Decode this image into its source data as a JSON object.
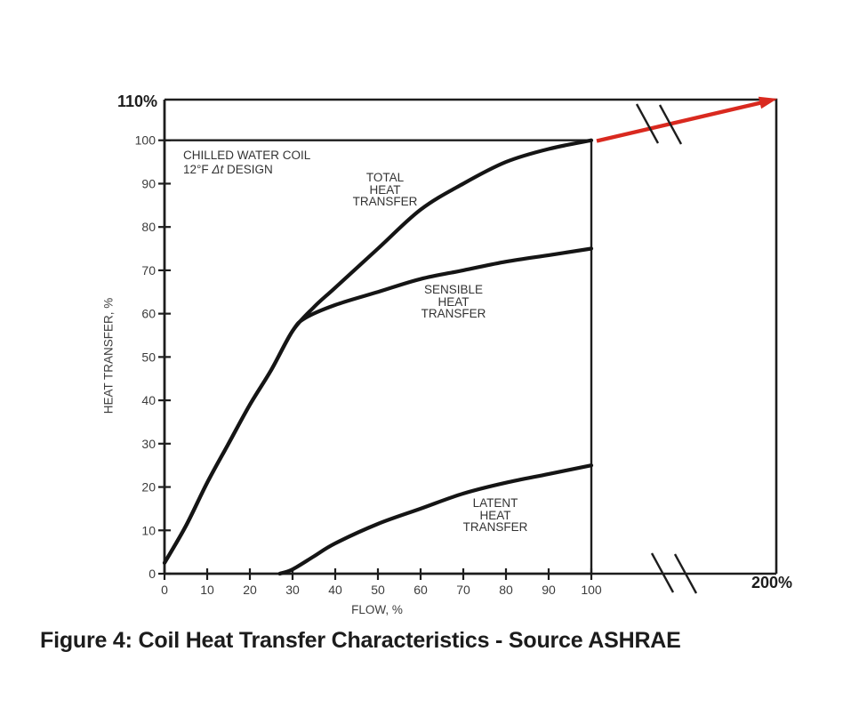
{
  "figure": {
    "caption_bold": "Figure 4:",
    "caption_rest": " Coil Heat Transfer Characteristics - Source ASHRAE"
  },
  "colors": {
    "ink": "#1d1d1d",
    "curve": "#151515",
    "tick_text": "#3c3c3c",
    "arrow_red": "#d9291f",
    "background": "#ffffff"
  },
  "chart_data": {
    "type": "line",
    "title": "",
    "xlabel": "FLOW, %",
    "ylabel": "HEAT TRANSFER, %",
    "xlim": [
      0,
      100
    ],
    "ylim": [
      0,
      110
    ],
    "x_ticks": [
      0,
      10,
      20,
      30,
      40,
      50,
      60,
      70,
      80,
      90,
      100
    ],
    "y_ticks": [
      0,
      10,
      20,
      30,
      40,
      50,
      60,
      70,
      80,
      90,
      100
    ],
    "grid": false,
    "legend_position": "inline-labels",
    "axis_top_label": "110%",
    "axis_extension_label": "200%",
    "axis_extension_note": "x-axis continues past 100 with break marks to 200% flow; red arrow extends the total heat transfer curve to 110% at 200% flow",
    "annotations": {
      "coil_note_line1": "CHILLED WATER COIL",
      "coil_note_prefix": "12°F ",
      "coil_note_italic": "Δt",
      "coil_note_suffix": " DESIGN",
      "total_label": "TOTAL\nHEAT\nTRANSFER",
      "sensible_label": "SENSIBLE\nHEAT\nTRANSFER",
      "latent_label": "LATENT\nHEAT\nTRANSFER"
    },
    "series": [
      {
        "name": "Total Heat Transfer",
        "points": [
          [
            0,
            2.5
          ],
          [
            5,
            11
          ],
          [
            10,
            21
          ],
          [
            15,
            30
          ],
          [
            20,
            39
          ],
          [
            25,
            47
          ],
          [
            30,
            56
          ],
          [
            35,
            61.5
          ],
          [
            40,
            66
          ],
          [
            50,
            75
          ],
          [
            60,
            84
          ],
          [
            70,
            90
          ],
          [
            80,
            95
          ],
          [
            90,
            98
          ],
          [
            100,
            100
          ]
        ]
      },
      {
        "name": "Sensible Heat Transfer",
        "points": [
          [
            0,
            2.5
          ],
          [
            5,
            11
          ],
          [
            10,
            21
          ],
          [
            15,
            30
          ],
          [
            20,
            39
          ],
          [
            25,
            47
          ],
          [
            30,
            56
          ],
          [
            33,
            59
          ],
          [
            40,
            62
          ],
          [
            50,
            65
          ],
          [
            60,
            68
          ],
          [
            70,
            70
          ],
          [
            80,
            72
          ],
          [
            90,
            73.5
          ],
          [
            100,
            75
          ]
        ]
      },
      {
        "name": "Latent Heat Transfer",
        "points": [
          [
            27,
            0
          ],
          [
            30,
            1
          ],
          [
            35,
            4
          ],
          [
            40,
            7
          ],
          [
            50,
            11.5
          ],
          [
            60,
            15
          ],
          [
            70,
            18.5
          ],
          [
            80,
            21
          ],
          [
            90,
            23
          ],
          [
            100,
            25
          ]
        ]
      }
    ]
  }
}
